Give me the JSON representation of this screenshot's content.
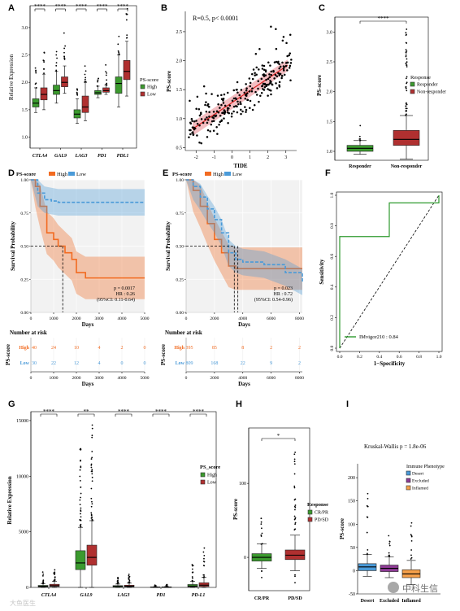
{
  "panels": {
    "A": {
      "letter": "A",
      "ylabel": "Relative Expression",
      "yticks": [
        "1.0",
        "1.5",
        "2.0",
        "2.5",
        "3.0"
      ],
      "genes": [
        "CTLA4",
        "GAL9",
        "LAG3",
        "PD1",
        "PDL1"
      ],
      "sig": [
        "****",
        "****",
        "****",
        "****",
        "****"
      ],
      "legend_title": "PS-score",
      "legend": [
        "High",
        "Low"
      ]
    },
    "B": {
      "letter": "B",
      "annotation": "R=0.5, p< 0.0001",
      "ylabel": "PS-score",
      "xlabel": "TIDE",
      "xticks": [
        "-2",
        "-1",
        "0",
        "1",
        "2",
        "3"
      ],
      "yticks": [
        "0.5",
        "1.0",
        "1.5",
        "2.0",
        "2.5"
      ]
    },
    "C": {
      "letter": "C",
      "ylabel": "PS-score",
      "yticks": [
        "1.0",
        "1.5",
        "2.0",
        "2.5",
        "3.0"
      ],
      "categories": [
        "Responder",
        "Non-responder"
      ],
      "sig": "****",
      "legend_title": "Response",
      "legend": [
        "Responder",
        "Non-responder"
      ]
    },
    "D": {
      "letter": "D",
      "legend_title": "PS-score",
      "legend": [
        "High",
        "Low"
      ],
      "ylabel": "Survival Probability",
      "xlabel": "Days",
      "yticks": [
        "0.00",
        "0.25",
        "0.50",
        "0.75",
        "1.00"
      ],
      "xticks": [
        "0",
        "1000",
        "2000",
        "3000",
        "4000",
        "5000"
      ],
      "stats": [
        "p = 0.0017",
        "HR : 0.26",
        "(95%CI: 0.11-0.64)"
      ],
      "risk_title": "Number at risk",
      "risk_ylabel": "PS-score",
      "risk_rows": [
        {
          "label": "High",
          "values": [
            "40",
            "24",
            "10",
            "4",
            "2",
            "0"
          ]
        },
        {
          "label": "Low",
          "values": [
            "30",
            "22",
            "12",
            "4",
            "0",
            "0"
          ]
        }
      ],
      "risk_xticks": [
        "0",
        "1000",
        "2000",
        "3000",
        "4000",
        "5000"
      ],
      "risk_xlabel": "Days"
    },
    "E": {
      "letter": "E",
      "legend_title": "PS-score",
      "legend": [
        "High",
        "Low"
      ],
      "ylabel": "Survival Probability",
      "xlabel": "Days",
      "yticks": [
        "0.00",
        "0.25",
        "0.50",
        "0.75",
        "1.00"
      ],
      "xticks": [
        "0",
        "2000",
        "4000",
        "6000",
        "8000"
      ],
      "stats": [
        "p = 0.023",
        "HR : 0.72",
        "(95%CI: 0.54-0.96)"
      ],
      "risk_title": "Number at risk",
      "risk_ylabel": "PS-score",
      "risk_rows": [
        {
          "label": "High",
          "values": [
            "395",
            "85",
            "8",
            "2",
            "2"
          ]
        },
        {
          "label": "Low",
          "values": [
            "809",
            "168",
            "22",
            "9",
            "2"
          ]
        }
      ],
      "risk_xticks": [
        "0",
        "2000",
        "4000",
        "6000",
        "8000"
      ],
      "risk_xlabel": "Days"
    },
    "F": {
      "letter": "F",
      "ylabel": "Sensitivity",
      "xlabel": "1−Specificity",
      "ticks": [
        "0.0",
        "0.2",
        "0.4",
        "0.6",
        "0.8",
        "1.0"
      ],
      "legend": "IMvigor210 : 0.84"
    },
    "G": {
      "letter": "G",
      "ylabel": "Relative Expression",
      "yticks": [
        "0",
        "5000",
        "10000",
        "15000"
      ],
      "genes": [
        "CTLA4",
        "GAL9",
        "LAG3",
        "PD1",
        "PD-L1"
      ],
      "sig": [
        "****",
        "**",
        "****",
        "****",
        "****"
      ],
      "legend_title": "PS_score",
      "legend": [
        "High",
        "Low"
      ]
    },
    "H": {
      "letter": "H",
      "ylabel": "PS-score",
      "yticks": [
        "0",
        "100"
      ],
      "categories": [
        "CR/PR",
        "PD/SD"
      ],
      "sig": "*",
      "legend_title": "Response",
      "legend": [
        "CR/PR",
        "PD/SD"
      ]
    },
    "I": {
      "letter": "I",
      "annotation": "Kruskal-Wallis    p = 1.8e-06",
      "ylabel": "PS-score",
      "yticks": [
        "-50",
        "0",
        "50",
        "100",
        "150",
        "200"
      ],
      "categories": [
        "Desert",
        "Excluded",
        "Inflamed"
      ],
      "legend_title": "Immune Phenotype",
      "legend": [
        "Desert",
        "Excluded",
        "Inflamed"
      ]
    }
  },
  "watermark": "中科生信",
  "watermark_corner": "大鱼医生",
  "colors": {
    "green": "#3b9a2e",
    "red": "#b03030",
    "orange": "#f26b21",
    "blue": "#4a9ad8",
    "purple": "#8e3b95",
    "lightorange": "#f5a04a",
    "roc": "#2e9a2e"
  },
  "chart_data": [
    {
      "type": "box",
      "panel": "A",
      "categories": [
        "CTLA4",
        "GAL9",
        "LAG3",
        "PD1",
        "PDL1"
      ],
      "series": [
        {
          "name": "High",
          "medians": [
            1.62,
            1.85,
            1.42,
            1.81,
            1.98
          ]
        },
        {
          "name": "Low",
          "medians": [
            1.78,
            2.0,
            1.55,
            1.85,
            2.2
          ]
        }
      ],
      "ylim": [
        0.8,
        3.4
      ]
    },
    {
      "type": "scatter",
      "panel": "B",
      "xlabel": "TIDE",
      "ylabel": "PS-score",
      "r": 0.5,
      "fit": {
        "x": [
          -2.2,
          3.1
        ],
        "y": [
          0.82,
          1.92
        ]
      },
      "xlim": [
        -2.6,
        3.6
      ],
      "ylim": [
        0.45,
        2.85
      ]
    },
    {
      "type": "box",
      "panel": "C",
      "categories": [
        "Responder",
        "Non-responder"
      ],
      "medians": [
        1.05,
        1.2
      ],
      "ylim": [
        0.85,
        3.25
      ]
    },
    {
      "type": "line",
      "panel": "D",
      "series": [
        {
          "name": "High",
          "x": [
            0,
            200,
            400,
            700,
            1000,
            1200,
            1500,
            1800,
            2000,
            2400,
            5000
          ],
          "y": [
            1.0,
            0.95,
            0.8,
            0.6,
            0.55,
            0.5,
            0.45,
            0.4,
            0.3,
            0.26,
            0.26
          ]
        },
        {
          "name": "Low",
          "x": [
            0,
            300,
            600,
            900,
            1200,
            5000
          ],
          "y": [
            1.0,
            0.9,
            0.85,
            0.84,
            0.83,
            0.83
          ]
        }
      ],
      "xlim": [
        0,
        5000
      ],
      "ylim": [
        0,
        1
      ]
    },
    {
      "type": "line",
      "panel": "E",
      "series": [
        {
          "name": "High",
          "x": [
            0,
            500,
            1000,
            1500,
            2000,
            2500,
            3000,
            3500,
            4000,
            8200
          ],
          "y": [
            1.0,
            0.92,
            0.8,
            0.67,
            0.55,
            0.45,
            0.35,
            0.33,
            0.33,
            0.33
          ]
        },
        {
          "name": "Low",
          "x": [
            0,
            500,
            1000,
            1500,
            2000,
            2500,
            3000,
            3500,
            4000,
            5500,
            7000,
            8200
          ],
          "y": [
            1.0,
            0.95,
            0.87,
            0.78,
            0.7,
            0.6,
            0.45,
            0.4,
            0.38,
            0.36,
            0.3,
            0.23
          ]
        }
      ],
      "xlim": [
        0,
        8200
      ],
      "ylim": [
        0,
        1
      ]
    },
    {
      "type": "line",
      "panel": "F",
      "series": [
        {
          "name": "IMvigor210",
          "x": [
            0,
            0,
            0.5,
            0.5,
            1,
            1
          ],
          "y": [
            0,
            0.73,
            0.73,
            0.95,
            0.95,
            1
          ]
        }
      ],
      "xlim": [
        0,
        1
      ],
      "ylim": [
        0,
        1
      ]
    },
    {
      "type": "box",
      "panel": "G",
      "categories": [
        "CTLA4",
        "GAL9",
        "LAG3",
        "PD1",
        "PD-L1"
      ],
      "series": [
        {
          "name": "High",
          "medians": [
            100,
            2200,
            90,
            20,
            120
          ]
        },
        {
          "name": "Low",
          "medians": [
            150,
            2700,
            110,
            25,
            200
          ]
        }
      ],
      "ylim": [
        0,
        15800
      ]
    },
    {
      "type": "box",
      "panel": "H",
      "categories": [
        "CR/PR",
        "PD/SD"
      ],
      "medians": [
        0,
        3
      ],
      "ylim": [
        -45,
        175
      ]
    },
    {
      "type": "box",
      "panel": "I",
      "categories": [
        "Desert",
        "Excluded",
        "Inflamed"
      ],
      "medians": [
        8,
        5,
        -7
      ],
      "ylim": [
        -50,
        230
      ]
    }
  ]
}
